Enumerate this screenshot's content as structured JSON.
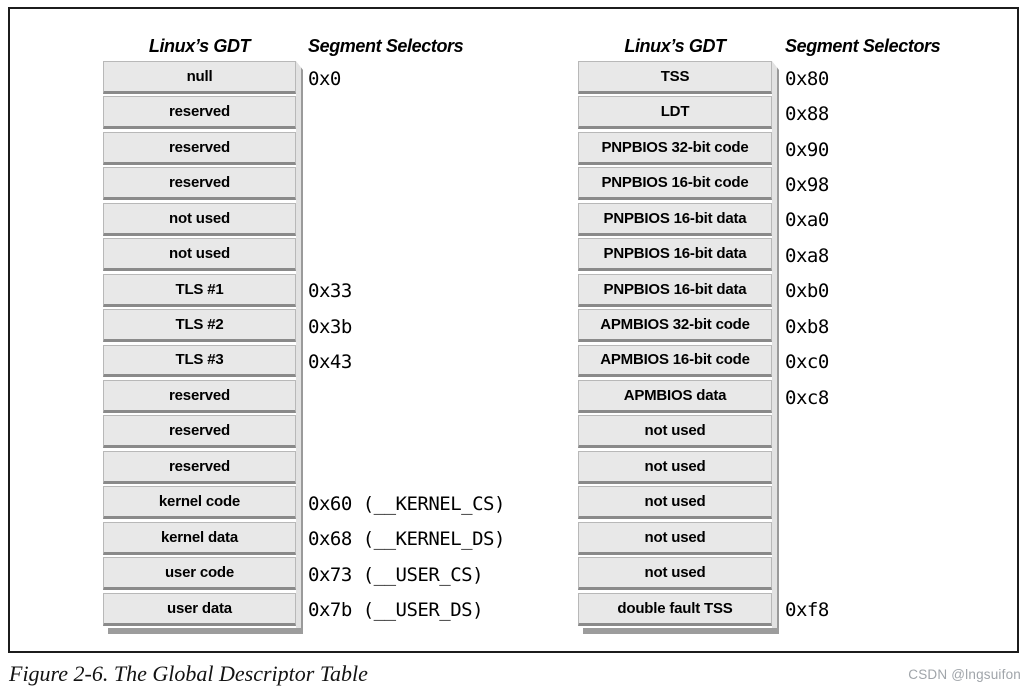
{
  "caption": "Figure 2-6. The Global Descriptor Table",
  "watermark": "CSDN @lngsuifon",
  "colors": {
    "row_fill": "#e8e8e8",
    "row_edge": "#b8b8b8",
    "row_divider": "#8a8a8a",
    "shadow_side": "#e2e2e2",
    "shadow_edge": "#9a9a9a",
    "shadow_bottom": "#9c9c9c",
    "frame": "#1c1c1c",
    "text": "#000000",
    "watermark": "#a0a5aa"
  },
  "panels": [
    {
      "gdt_header": "Linux’s GDT",
      "selectors_header": "Segment Selectors",
      "rows": [
        {
          "label": "null",
          "selector": "0x0"
        },
        {
          "label": "reserved",
          "selector": ""
        },
        {
          "label": "reserved",
          "selector": ""
        },
        {
          "label": "reserved",
          "selector": ""
        },
        {
          "label": "not used",
          "selector": ""
        },
        {
          "label": "not used",
          "selector": ""
        },
        {
          "label": "TLS #1",
          "selector": "0x33"
        },
        {
          "label": "TLS #2",
          "selector": "0x3b"
        },
        {
          "label": "TLS #3",
          "selector": "0x43"
        },
        {
          "label": "reserved",
          "selector": ""
        },
        {
          "label": "reserved",
          "selector": ""
        },
        {
          "label": "reserved",
          "selector": ""
        },
        {
          "label": "kernel code",
          "selector": "0x60 (__KERNEL_CS)"
        },
        {
          "label": "kernel data",
          "selector": "0x68 (__KERNEL_DS)"
        },
        {
          "label": "user code",
          "selector": "0x73 (__USER_CS)"
        },
        {
          "label": "user data",
          "selector": "0x7b (__USER_DS)"
        }
      ]
    },
    {
      "gdt_header": "Linux’s GDT",
      "selectors_header": "Segment Selectors",
      "rows": [
        {
          "label": "TSS",
          "selector": "0x80"
        },
        {
          "label": "LDT",
          "selector": "0x88"
        },
        {
          "label": "PNPBIOS 32-bit code",
          "selector": "0x90"
        },
        {
          "label": "PNPBIOS 16-bit code",
          "selector": "0x98"
        },
        {
          "label": "PNPBIOS 16-bit data",
          "selector": "0xa0"
        },
        {
          "label": "PNPBIOS 16-bit data",
          "selector": "0xa8"
        },
        {
          "label": "PNPBIOS 16-bit data",
          "selector": "0xb0"
        },
        {
          "label": "APMBIOS 32-bit code",
          "selector": "0xb8"
        },
        {
          "label": "APMBIOS 16-bit code",
          "selector": "0xc0"
        },
        {
          "label": "APMBIOS data",
          "selector": "0xc8"
        },
        {
          "label": "not used",
          "selector": ""
        },
        {
          "label": "not used",
          "selector": ""
        },
        {
          "label": "not used",
          "selector": ""
        },
        {
          "label": "not used",
          "selector": ""
        },
        {
          "label": "not used",
          "selector": ""
        },
        {
          "label": "double fault TSS",
          "selector": "0xf8"
        }
      ]
    }
  ]
}
